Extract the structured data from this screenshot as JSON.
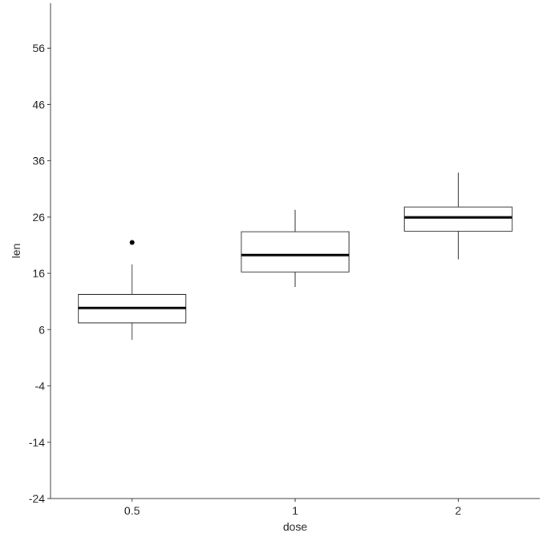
{
  "chart_data": {
    "type": "box",
    "xlabel": "dose",
    "ylabel": "len",
    "categories": [
      "0.5",
      "1",
      "2"
    ],
    "ylim": [
      -24,
      64
    ],
    "yticks": [
      -24,
      -14,
      -4,
      6,
      16,
      26,
      36,
      46,
      56
    ],
    "ytick_labels": [
      "-24",
      "-14",
      "-4",
      "6",
      "16",
      "26",
      "36",
      "46",
      "56"
    ],
    "grid": false,
    "series": [
      {
        "category": "0.5",
        "min": 4.2,
        "q1": 7.2,
        "median": 9.85,
        "q3": 12.25,
        "max": 17.6,
        "outliers": [
          21.5
        ]
      },
      {
        "category": "1",
        "min": 13.6,
        "q1": 16.25,
        "median": 19.25,
        "q3": 23.4,
        "max": 27.3,
        "outliers": []
      },
      {
        "category": "2",
        "min": 18.5,
        "q1": 23.5,
        "median": 25.95,
        "q3": 27.8,
        "max": 33.9,
        "outliers": []
      }
    ],
    "colors": {
      "box_fill": "#ffffff",
      "stroke": "#333333",
      "median": "#000000",
      "outlier": "#000000"
    }
  }
}
